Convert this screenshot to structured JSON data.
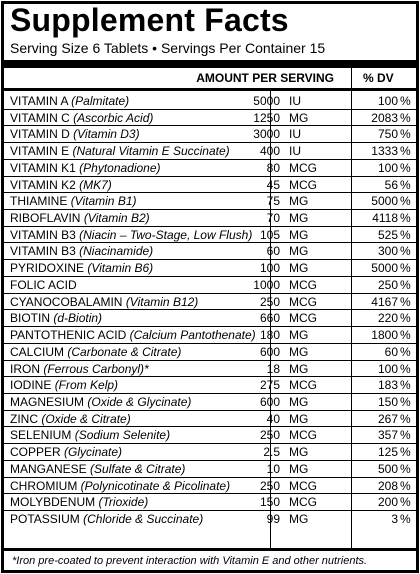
{
  "title": "Supplement Facts",
  "serving": "Serving Size 6 Tablets • Servings Per Container 15",
  "header": {
    "amount": "AMOUNT PER SERVING",
    "dv": "% DV"
  },
  "rows": [
    {
      "name": "VITAMIN A",
      "form": "(Palmitate)",
      "amount": "5000",
      "unit": "IU",
      "dv": "100"
    },
    {
      "name": "VITAMIN C",
      "form": "(Ascorbic Acid)",
      "amount": "1250",
      "unit": "MG",
      "dv": "2083"
    },
    {
      "name": "VITAMIN D",
      "form": "(Vitamin D3)",
      "amount": "3000",
      "unit": "IU",
      "dv": "750"
    },
    {
      "name": "VITAMIN E",
      "form": "(Natural Vitamin E Succinate)",
      "amount": "400",
      "unit": "IU",
      "dv": "1333"
    },
    {
      "name": "VITAMIN K1",
      "form": "(Phytonadione)",
      "amount": "80",
      "unit": "MCG",
      "dv": "100"
    },
    {
      "name": "VITAMIN K2",
      "form": "(MK7)",
      "amount": "45",
      "unit": "MCG",
      "dv": "56"
    },
    {
      "name": "THIAMINE",
      "form": "(Vitamin B1)",
      "amount": "75",
      "unit": "MG",
      "dv": "5000"
    },
    {
      "name": "RIBOFLAVIN",
      "form": "(Vitamin B2)",
      "amount": "70",
      "unit": "MG",
      "dv": "4118"
    },
    {
      "name": "VITAMIN B3",
      "form": "(Niacin – Two-Stage, Low Flush)",
      "amount": "105",
      "unit": "MG",
      "dv": "525"
    },
    {
      "name": "VITAMIN B3",
      "form": "(Niacinamide)",
      "amount": "60",
      "unit": "MG",
      "dv": "300"
    },
    {
      "name": "PYRIDOXINE",
      "form": "(Vitamin B6)",
      "amount": "100",
      "unit": "MG",
      "dv": "5000"
    },
    {
      "name": "FOLIC ACID",
      "form": "",
      "amount": "1000",
      "unit": "MCG",
      "dv": "250"
    },
    {
      "name": "CYANOCOBALAMIN",
      "form": "(Vitamin B12)",
      "amount": "250",
      "unit": "MCG",
      "dv": "4167"
    },
    {
      "name": "BIOTIN",
      "form": "(d-Biotin)",
      "amount": "660",
      "unit": "MCG",
      "dv": "220"
    },
    {
      "name": "PANTOTHENIC ACID",
      "form": "(Calcium Pantothenate)",
      "amount": "180",
      "unit": "MG",
      "dv": "1800"
    },
    {
      "name": "CALCIUM",
      "form": "(Carbonate & Citrate)",
      "amount": "600",
      "unit": "MG",
      "dv": "60"
    },
    {
      "name": "IRON",
      "form": "(Ferrous Carbonyl)*",
      "amount": "18",
      "unit": "MG",
      "dv": "100"
    },
    {
      "name": "IODINE",
      "form": "(From Kelp)",
      "amount": "275",
      "unit": "MCG",
      "dv": "183"
    },
    {
      "name": "MAGNESIUM",
      "form": "(Oxide & Glycinate)",
      "amount": "600",
      "unit": "MG",
      "dv": "150"
    },
    {
      "name": "ZINC",
      "form": "(Oxide & Citrate)",
      "amount": "40",
      "unit": "MG",
      "dv": "267"
    },
    {
      "name": "SELENIUM",
      "form": "(Sodium Selenite)",
      "amount": "250",
      "unit": "MCG",
      "dv": "357"
    },
    {
      "name": "COPPER",
      "form": "(Glycinate)",
      "amount": "2.5",
      "unit": "MG",
      "dv": "125"
    },
    {
      "name": "MANGANESE",
      "form": "(Sulfate & Citrate)",
      "amount": "10",
      "unit": "MG",
      "dv": "500"
    },
    {
      "name": "CHROMIUM",
      "form": "(Polynicotinate & Picolinate)",
      "amount": "250",
      "unit": "MCG",
      "dv": "208"
    },
    {
      "name": "MOLYBDENUM",
      "form": "(Trioxide)",
      "amount": "150",
      "unit": "MCG",
      "dv": "200"
    },
    {
      "name": "POTASSIUM",
      "form": "(Chloride & Succinate)",
      "amount": "99",
      "unit": "MG",
      "dv": "3"
    }
  ],
  "percent_sign": "%",
  "footnote": "*Iron pre-coated to prevent interaction with Vitamin E and other nutrients."
}
